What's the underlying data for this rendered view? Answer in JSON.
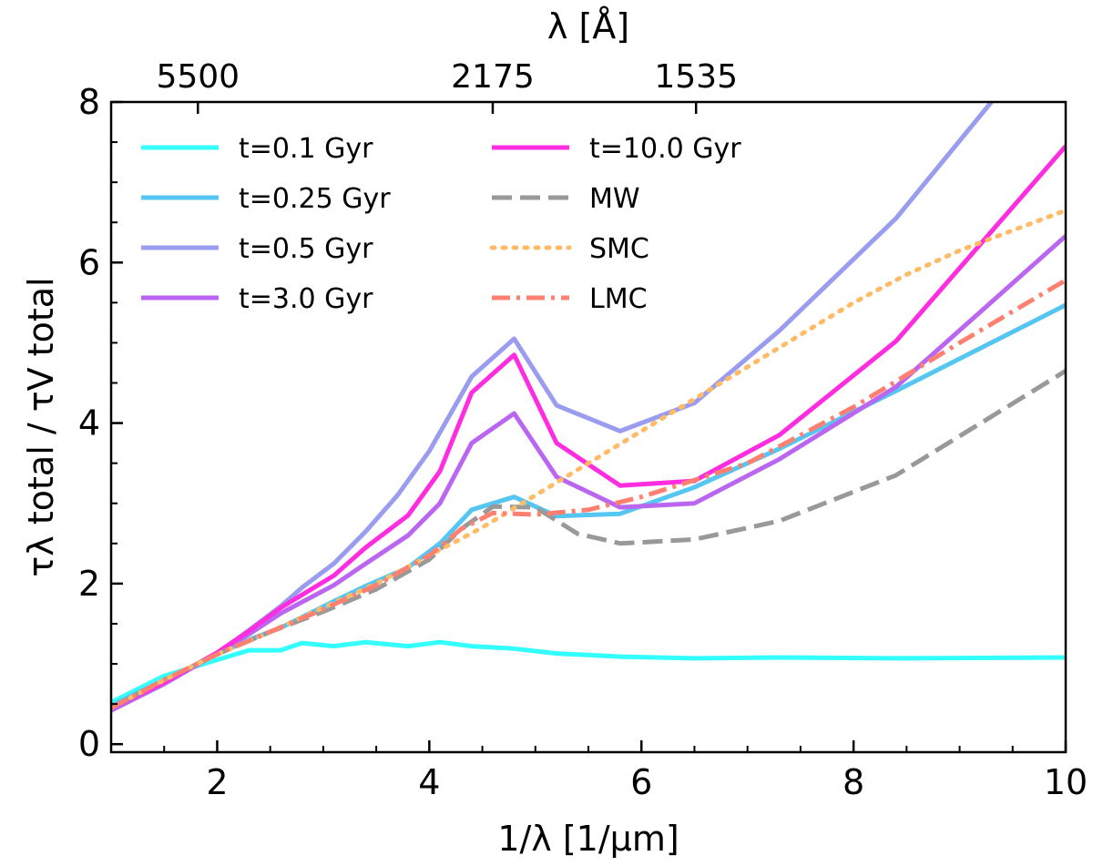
{
  "chart_data": {
    "type": "line",
    "xlabel": "1/λ [1/μm]",
    "ylabel": "τλ total / τV total",
    "top_axis_label": "λ [Å]",
    "xlim": [
      1,
      10
    ],
    "ylim": [
      -0.1,
      8
    ],
    "x_ticks": [
      2,
      4,
      6,
      8,
      10
    ],
    "y_ticks": [
      0,
      2,
      4,
      6,
      8
    ],
    "x_minor_step": 0.5,
    "y_minor_step": 0.5,
    "top_ticks": [
      {
        "label": "5500",
        "x": 1.818
      },
      {
        "label": "2175",
        "x": 4.598
      },
      {
        "label": "1535",
        "x": 6.515
      }
    ],
    "legend_position": "upper-left",
    "series": [
      {
        "name": "t=0.1 Gyr",
        "color": "#33ffff",
        "dash": "solid",
        "x": [
          1.0,
          1.5,
          2.0,
          2.3,
          2.6,
          2.8,
          3.1,
          3.4,
          3.8,
          4.1,
          4.4,
          4.8,
          5.2,
          5.8,
          6.5,
          7.3,
          8.4,
          10.0
        ],
        "y": [
          0.52,
          0.85,
          1.05,
          1.17,
          1.17,
          1.26,
          1.22,
          1.27,
          1.22,
          1.27,
          1.22,
          1.19,
          1.13,
          1.09,
          1.07,
          1.08,
          1.07,
          1.08
        ]
      },
      {
        "name": "t=0.25 Gyr",
        "color": "#55c5f2",
        "dash": "solid",
        "x": [
          1.0,
          1.5,
          2.0,
          2.3,
          2.6,
          3.1,
          3.4,
          3.8,
          4.1,
          4.4,
          4.8,
          5.2,
          5.8,
          6.5,
          7.3,
          8.4,
          10.0
        ],
        "y": [
          0.48,
          0.8,
          1.12,
          1.3,
          1.45,
          1.78,
          1.97,
          2.2,
          2.5,
          2.92,
          3.08,
          2.84,
          2.87,
          3.2,
          3.68,
          4.4,
          5.47
        ]
      },
      {
        "name": "t=0.5 Gyr",
        "color": "#9a9cf0",
        "dash": "solid",
        "x": [
          1.0,
          1.5,
          2.0,
          2.3,
          2.6,
          2.8,
          3.1,
          3.4,
          3.7,
          4.0,
          4.4,
          4.8,
          5.2,
          5.8,
          6.5,
          7.3,
          8.4,
          9.3
        ],
        "y": [
          0.44,
          0.76,
          1.13,
          1.42,
          1.72,
          1.95,
          2.25,
          2.65,
          3.1,
          3.65,
          4.58,
          5.05,
          4.22,
          3.9,
          4.25,
          5.15,
          6.55,
          8.0
        ]
      },
      {
        "name": "t=3.0 Gyr",
        "color": "#bb66f0",
        "dash": "solid",
        "x": [
          1.0,
          1.5,
          2.0,
          2.3,
          2.6,
          3.1,
          3.4,
          3.8,
          4.1,
          4.4,
          4.8,
          5.2,
          5.8,
          6.5,
          7.3,
          8.4,
          10.0
        ],
        "y": [
          0.42,
          0.75,
          1.13,
          1.37,
          1.63,
          1.98,
          2.25,
          2.6,
          3.0,
          3.75,
          4.12,
          3.33,
          2.95,
          3.0,
          3.55,
          4.45,
          6.33
        ]
      },
      {
        "name": "t=10.0 Gyr",
        "color": "#ff2ce0",
        "dash": "solid",
        "x": [
          1.0,
          1.5,
          2.0,
          2.3,
          2.6,
          3.1,
          3.4,
          3.8,
          4.1,
          4.4,
          4.8,
          5.2,
          5.8,
          6.5,
          7.3,
          8.4,
          10.0
        ],
        "y": [
          0.45,
          0.77,
          1.14,
          1.41,
          1.7,
          2.1,
          2.45,
          2.85,
          3.4,
          4.38,
          4.85,
          3.75,
          3.22,
          3.28,
          3.85,
          5.02,
          7.45
        ]
      },
      {
        "name": "MW",
        "color": "#999999",
        "dash": "dashed",
        "x": [
          1.0,
          1.5,
          2.0,
          2.5,
          3.0,
          3.5,
          4.0,
          4.3,
          4.6,
          5.0,
          5.4,
          5.8,
          6.5,
          7.3,
          8.4,
          10.0
        ],
        "y": [
          0.45,
          0.8,
          1.12,
          1.4,
          1.65,
          1.93,
          2.3,
          2.68,
          2.96,
          2.95,
          2.62,
          2.5,
          2.55,
          2.78,
          3.35,
          4.65
        ]
      },
      {
        "name": "SMC",
        "color": "#ffbb66",
        "dash": "dotted",
        "x": [
          1.0,
          1.5,
          2.0,
          2.5,
          3.0,
          3.5,
          4.0,
          4.5,
          5.0,
          5.5,
          6.0,
          6.5,
          7.0,
          7.5,
          8.0,
          8.5,
          9.0,
          9.5,
          10.0
        ],
        "y": [
          0.45,
          0.8,
          1.12,
          1.4,
          1.7,
          2.0,
          2.35,
          2.7,
          3.1,
          3.5,
          3.9,
          4.3,
          4.7,
          5.1,
          5.5,
          5.85,
          6.15,
          6.4,
          6.65
        ]
      },
      {
        "name": "LMC",
        "color": "#ff8070",
        "dash": "dashdot",
        "x": [
          1.0,
          1.5,
          2.0,
          2.5,
          3.0,
          3.5,
          4.0,
          4.3,
          4.6,
          5.0,
          5.5,
          6.0,
          7.0,
          8.0,
          9.0,
          10.0
        ],
        "y": [
          0.45,
          0.8,
          1.12,
          1.4,
          1.68,
          1.98,
          2.35,
          2.68,
          2.88,
          2.86,
          2.92,
          3.08,
          3.5,
          4.2,
          5.0,
          5.78
        ]
      }
    ]
  }
}
